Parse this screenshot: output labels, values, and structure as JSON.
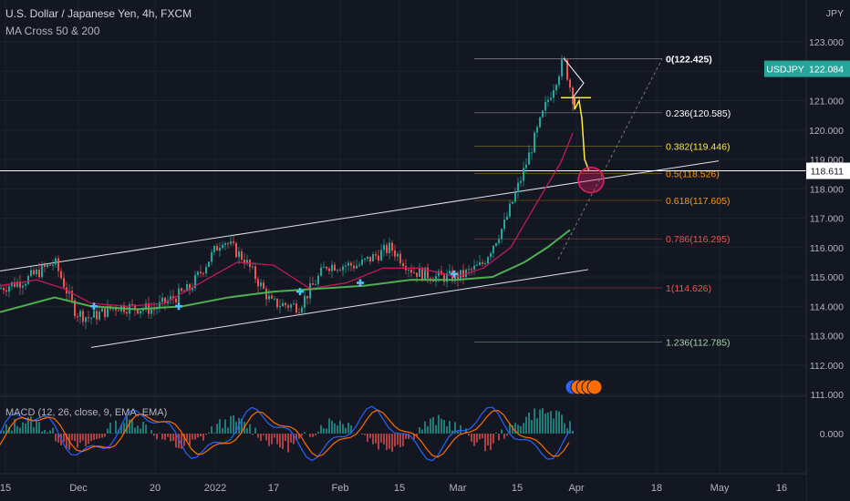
{
  "header": {
    "title": "U.S. Dollar / Japanese Yen, 4h, FXCM",
    "indicator": "MA Cross 50 & 200",
    "macd": "MACD (12, 26, close, 9, EMA, EMA)",
    "currency": "JPY"
  },
  "price_badge": {
    "symbol": "USDJPY",
    "price": "122.084",
    "color": "#26a69a"
  },
  "crosshair_badge": {
    "price": "118.611"
  },
  "colors": {
    "background": "#131722",
    "up": "#26a69a",
    "down": "#ef5350",
    "ma_fast": "#c2185b",
    "ma_slow": "#4caf50",
    "annotation": "#ffeb3b",
    "target_circle": "#e91e63"
  },
  "chart_data": {
    "type": "candlestick",
    "y_axis": {
      "ticks": [
        "123.000",
        "122.000",
        "121.000",
        "120.000",
        "119.000",
        "118.000",
        "117.000",
        "116.000",
        "115.000",
        "114.000",
        "113.000",
        "112.000",
        "111.000"
      ],
      "range": [
        111.0,
        123.6
      ]
    },
    "x_axis": {
      "ticks": [
        "15",
        "Dec",
        "20",
        "2022",
        "17",
        "Feb",
        "15",
        "Mar",
        "15",
        "Apr",
        "18",
        "May",
        "16"
      ]
    },
    "fibonacci": [
      {
        "label": "0(122.425)",
        "value": 122.425,
        "color": "#ffffff"
      },
      {
        "label": "0.236(120.585)",
        "value": 120.585,
        "color": "#ffffff"
      },
      {
        "label": "0.382(119.446)",
        "value": 119.446,
        "color": "#ffeb3b"
      },
      {
        "label": "0.5(118.526)",
        "value": 118.526,
        "color": "#ff9800"
      },
      {
        "label": "0.618(117.605)",
        "value": 117.605,
        "color": "#ff9800"
      },
      {
        "label": "0.786(116.295)",
        "value": 116.295,
        "color": "#ef5350"
      },
      {
        "label": "1(114.626)",
        "value": 114.626,
        "color": "#ef5350"
      },
      {
        "label": "1.236(112.785)",
        "value": 112.785,
        "color": "#a5d6a7"
      }
    ],
    "macd": {
      "zero_label": "0.000"
    },
    "cross_markers": 5
  }
}
